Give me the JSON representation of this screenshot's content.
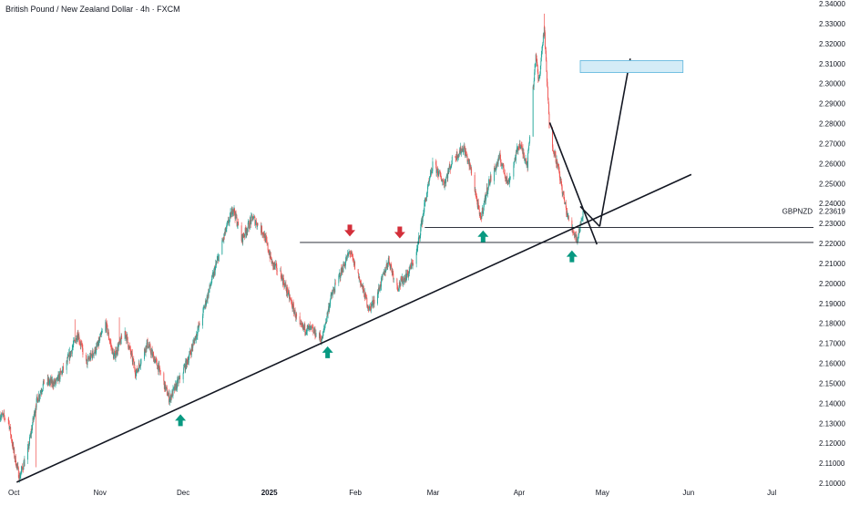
{
  "header": {
    "title": "British Pound / New Zealand Dollar · 4h · FXCM"
  },
  "colors": {
    "up": "#26a69a",
    "down": "#ef5350",
    "line": "#131722",
    "arrow_up": "#089981",
    "arrow_down": "#d32f3a",
    "target_fill": "#d4ecf7",
    "target_stroke": "#5bb4dc",
    "text": "#131722",
    "label_bg": "#ffffff"
  },
  "chart_data": {
    "type": "candlestick",
    "symbol_label": "GBPNZD",
    "last_price": "2.23619",
    "x_ticks": [
      "Oct",
      "Nov",
      "Dec",
      "2025",
      "Feb",
      "Mar",
      "Apr",
      "May",
      "Jun",
      "Jul"
    ],
    "y_ticks": [
      "2.34000",
      "2.33000",
      "2.32000",
      "2.31000",
      "2.30000",
      "2.29000",
      "2.28000",
      "2.27000",
      "2.26000",
      "2.25000",
      "2.24000",
      "2.23619",
      "2.23000",
      "2.22000",
      "2.21000",
      "2.20000",
      "2.19000",
      "2.18000",
      "2.17000",
      "2.16000",
      "2.15000",
      "2.14000",
      "2.13000",
      "2.12000",
      "2.11000",
      "2.10000"
    ],
    "y_range": [
      2.1,
      2.34
    ],
    "x_range": [
      "2024-09-26",
      "2025-07-16"
    ],
    "price_path": [
      [
        "2024-09-26",
        2.134
      ],
      [
        "2024-09-29",
        2.132
      ],
      [
        "2024-10-01",
        2.115
      ],
      [
        "2024-10-03",
        2.103
      ],
      [
        "2024-10-06",
        2.116
      ],
      [
        "2024-10-09",
        2.14
      ],
      [
        "2024-10-12",
        2.151
      ],
      [
        "2024-10-16",
        2.15
      ],
      [
        "2024-10-20",
        2.16
      ],
      [
        "2024-10-24",
        2.175
      ],
      [
        "2024-10-27",
        2.16
      ],
      [
        "2024-10-31",
        2.168
      ],
      [
        "2024-11-03",
        2.18
      ],
      [
        "2024-11-06",
        2.163
      ],
      [
        "2024-11-10",
        2.176
      ],
      [
        "2024-11-14",
        2.155
      ],
      [
        "2024-11-18",
        2.17
      ],
      [
        "2024-11-22",
        2.158
      ],
      [
        "2024-11-26",
        2.142
      ],
      [
        "2024-11-30",
        2.153
      ],
      [
        "2024-12-03",
        2.163
      ],
      [
        "2024-12-07",
        2.18
      ],
      [
        "2024-12-10",
        2.195
      ],
      [
        "2024-12-13",
        2.21
      ],
      [
        "2024-12-16",
        2.225
      ],
      [
        "2024-12-19",
        2.238
      ],
      [
        "2024-12-22",
        2.222
      ],
      [
        "2024-12-26",
        2.233
      ],
      [
        "2024-12-30",
        2.225
      ],
      [
        "2025-01-02",
        2.21
      ],
      [
        "2025-01-05",
        2.205
      ],
      [
        "2025-01-09",
        2.19
      ],
      [
        "2025-01-12",
        2.178
      ],
      [
        "2025-01-16",
        2.177
      ],
      [
        "2025-01-20",
        2.172
      ],
      [
        "2025-01-23",
        2.192
      ],
      [
        "2025-01-26",
        2.203
      ],
      [
        "2025-01-30",
        2.216
      ],
      [
        "2025-02-03",
        2.2
      ],
      [
        "2025-02-06",
        2.187
      ],
      [
        "2025-02-09",
        2.195
      ],
      [
        "2025-02-13",
        2.212
      ],
      [
        "2025-02-16",
        2.198
      ],
      [
        "2025-02-20",
        2.205
      ],
      [
        "2025-02-23",
        2.215
      ],
      [
        "2025-02-26",
        2.24
      ],
      [
        "2025-03-01",
        2.26
      ],
      [
        "2025-03-05",
        2.25
      ],
      [
        "2025-03-08",
        2.262
      ],
      [
        "2025-03-12",
        2.268
      ],
      [
        "2025-03-15",
        2.255
      ],
      [
        "2025-03-18",
        2.232
      ],
      [
        "2025-03-21",
        2.25
      ],
      [
        "2025-03-25",
        2.263
      ],
      [
        "2025-03-28",
        2.25
      ],
      [
        "2025-04-01",
        2.27
      ],
      [
        "2025-04-04",
        2.26
      ],
      [
        "2025-04-07",
        2.315
      ],
      [
        "2025-04-08",
        2.3
      ],
      [
        "2025-04-10",
        2.328
      ],
      [
        "2025-04-12",
        2.275
      ],
      [
        "2025-04-15",
        2.258
      ],
      [
        "2025-04-17",
        2.243
      ],
      [
        "2025-04-19",
        2.23
      ],
      [
        "2025-04-22",
        2.222
      ],
      [
        "2025-04-24",
        2.236
      ]
    ],
    "highlight_points": [
      [
        "2024-10-09",
        2.108
      ],
      [
        "2024-10-23",
        2.182
      ],
      [
        "2024-11-08",
        2.183
      ],
      [
        "2025-04-10",
        2.335
      ]
    ],
    "support_levels": [
      {
        "from": "2025-01-12",
        "to": "2025-07-16",
        "price": 2.2205
      },
      {
        "from": "2025-02-26",
        "to": "2025-07-16",
        "price": 2.228
      }
    ],
    "trendlines": [
      {
        "from": [
          "2024-10-02",
          2.1005
        ],
        "to": [
          "2025-06-02",
          2.2545
        ]
      },
      {
        "from": [
          "2025-04-12",
          2.2805
        ],
        "to": [
          "2025-04-29",
          2.2195
        ]
      },
      {
        "from": [
          "2025-04-23",
          2.2385
        ],
        "to": [
          "2025-04-30",
          2.2285
        ]
      },
      {
        "from": [
          "2025-04-30",
          2.2285
        ],
        "to": [
          "2025-05-11",
          2.3125
        ]
      }
    ],
    "target_zone": {
      "from": "2025-04-23",
      "to": "2025-05-30",
      "top": 2.3115,
      "bottom": 2.3055
    },
    "markers": [
      {
        "direction": "up",
        "date": "2024-11-30",
        "price": 2.1345
      },
      {
        "direction": "up",
        "date": "2025-01-22",
        "price": 2.1685
      },
      {
        "direction": "down",
        "date": "2025-01-30",
        "price": 2.2235
      },
      {
        "direction": "down",
        "date": "2025-02-17",
        "price": 2.2225
      },
      {
        "direction": "up",
        "date": "2025-03-19",
        "price": 2.2265
      },
      {
        "direction": "up",
        "date": "2025-04-20",
        "price": 2.2165
      }
    ]
  }
}
